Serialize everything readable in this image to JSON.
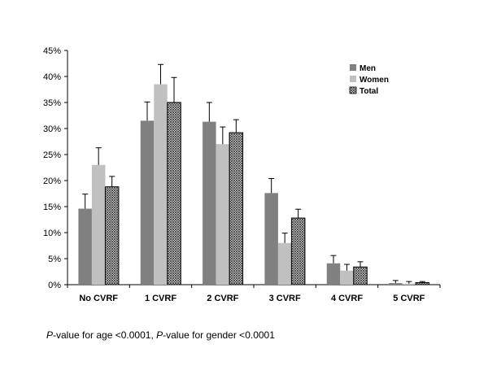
{
  "chart_data": {
    "type": "bar",
    "categories": [
      "No CVRF",
      "1 CVRF",
      "2 CVRF",
      "3 CVRF",
      "4 CVRF",
      "5 CVRF"
    ],
    "series": [
      {
        "name": "Men",
        "values": [
          14.6,
          31.5,
          31.3,
          17.6,
          4.1,
          0.3
        ],
        "errors": [
          2.8,
          3.6,
          3.7,
          2.8,
          1.5,
          0.5
        ],
        "color": "#808080",
        "pattern": "solid"
      },
      {
        "name": "Women",
        "values": [
          23.0,
          38.5,
          27.0,
          8.0,
          2.7,
          0.2
        ],
        "errors": [
          3.3,
          3.8,
          3.3,
          1.9,
          1.2,
          0.4
        ],
        "color": "#c0c0c0",
        "pattern": "solid"
      },
      {
        "name": "Total",
        "values": [
          18.8,
          35.0,
          29.2,
          12.8,
          3.4,
          0.4
        ],
        "errors": [
          2.0,
          4.8,
          2.5,
          1.7,
          1.0,
          0.2
        ],
        "color": "#ffffff",
        "pattern": "crosshatch"
      }
    ],
    "yticks": [
      "0%",
      "5%",
      "10%",
      "15%",
      "20%",
      "25%",
      "30%",
      "35%",
      "40%",
      "45%"
    ],
    "ylim": [
      0,
      45
    ],
    "legend_position": "top-right",
    "grid": false
  },
  "footnote": {
    "p1_italic": "P",
    "p1_text": "-value for age <0.0001, ",
    "p2_italic": "P",
    "p2_text": "-value for gender <0.0001"
  }
}
